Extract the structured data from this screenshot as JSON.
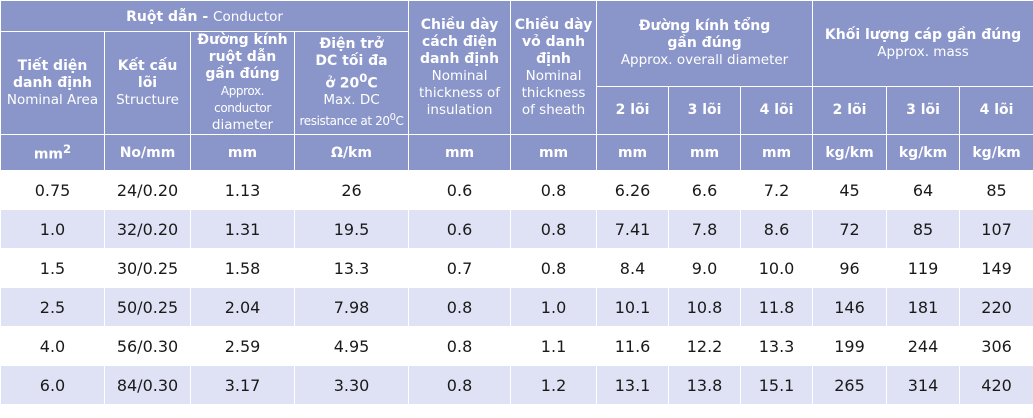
{
  "header": {
    "conductor_group": {
      "vi": "Ruột dẫn",
      "sep": " - ",
      "en": "Conductor"
    },
    "nominal_area": {
      "vi1": "Tiết diện",
      "vi2": "danh định",
      "en": "Nominal Area"
    },
    "structure": {
      "vi1": "Kết cấu",
      "vi2": "lõi",
      "en": "Structure"
    },
    "conductor_diameter": {
      "vi1": "Đường kính",
      "vi2": "ruột dẫn",
      "vi3": "gần đúng",
      "en1": "Approx. conductor",
      "en2": "diameter"
    },
    "dc_resistance": {
      "vi1": "Điện trở",
      "vi2": "DC tối đa",
      "vi3": "ở 20",
      "vi3_sup": "0",
      "vi3_end": "C",
      "en1": "Max. DC",
      "en2": "resistance at 20",
      "en2_sup": "0",
      "en2_end": "C"
    },
    "insulation": {
      "vi1": "Chiều dày",
      "vi2": "cách điện",
      "vi3": "danh định",
      "en1": "Nominal",
      "en2": "thickness of",
      "en3": "insulation"
    },
    "sheath": {
      "vi1": "Chiều dày",
      "vi2": "vỏ danh",
      "vi3": "định",
      "en1": "Nominal",
      "en2": "thickness",
      "en3": "of sheath"
    },
    "overall_diameter": {
      "vi1": "Đường kính tổng",
      "vi2": "gần đúng",
      "en": "Approx. overall diameter"
    },
    "mass": {
      "vi": "Khối lượng cáp gần đúng",
      "en": "Approx. mass"
    },
    "core_2": "2 lõi",
    "core_3": "3 lõi",
    "core_4": "4 lõi"
  },
  "units": {
    "area": "mm",
    "area_sup": "2",
    "structure": "No/mm",
    "cond_diam": "mm",
    "resistance": "Ω/km",
    "insulation": "mm",
    "sheath": "mm",
    "od2": "mm",
    "od3": "mm",
    "od4": "mm",
    "m2": "kg/km",
    "m3": "kg/km",
    "m4": "kg/km"
  },
  "rows": [
    {
      "area": "0.75",
      "structure": "24/0.20",
      "cond_diam": "1.13",
      "resistance": "26",
      "insulation": "0.6",
      "sheath": "0.8",
      "od2": "6.26",
      "od3": "6.6",
      "od4": "7.2",
      "m2": "45",
      "m3": "64",
      "m4": "85"
    },
    {
      "area": "1.0",
      "structure": "32/0.20",
      "cond_diam": "1.31",
      "resistance": "19.5",
      "insulation": "0.6",
      "sheath": "0.8",
      "od2": "7.41",
      "od3": "7.8",
      "od4": "8.6",
      "m2": "72",
      "m3": "85",
      "m4": "107"
    },
    {
      "area": "1.5",
      "structure": "30/0.25",
      "cond_diam": "1.58",
      "resistance": "13.3",
      "insulation": "0.7",
      "sheath": "0.8",
      "od2": "8.4",
      "od3": "9.0",
      "od4": "10.0",
      "m2": "96",
      "m3": "119",
      "m4": "149"
    },
    {
      "area": "2.5",
      "structure": "50/0.25",
      "cond_diam": "2.04",
      "resistance": "7.98",
      "insulation": "0.8",
      "sheath": "1.0",
      "od2": "10.1",
      "od3": "10.8",
      "od4": "11.8",
      "m2": "146",
      "m3": "181",
      "m4": "220"
    },
    {
      "area": "4.0",
      "structure": "56/0.30",
      "cond_diam": "2.59",
      "resistance": "4.95",
      "insulation": "0.8",
      "sheath": "1.1",
      "od2": "11.6",
      "od3": "12.2",
      "od4": "13.3",
      "m2": "199",
      "m3": "244",
      "m4": "306"
    },
    {
      "area": "6.0",
      "structure": "84/0.30",
      "cond_diam": "3.17",
      "resistance": "3.30",
      "insulation": "0.8",
      "sheath": "1.2",
      "od2": "13.1",
      "od3": "13.8",
      "od4": "15.1",
      "m2": "265",
      "m3": "314",
      "m4": "420"
    }
  ]
}
